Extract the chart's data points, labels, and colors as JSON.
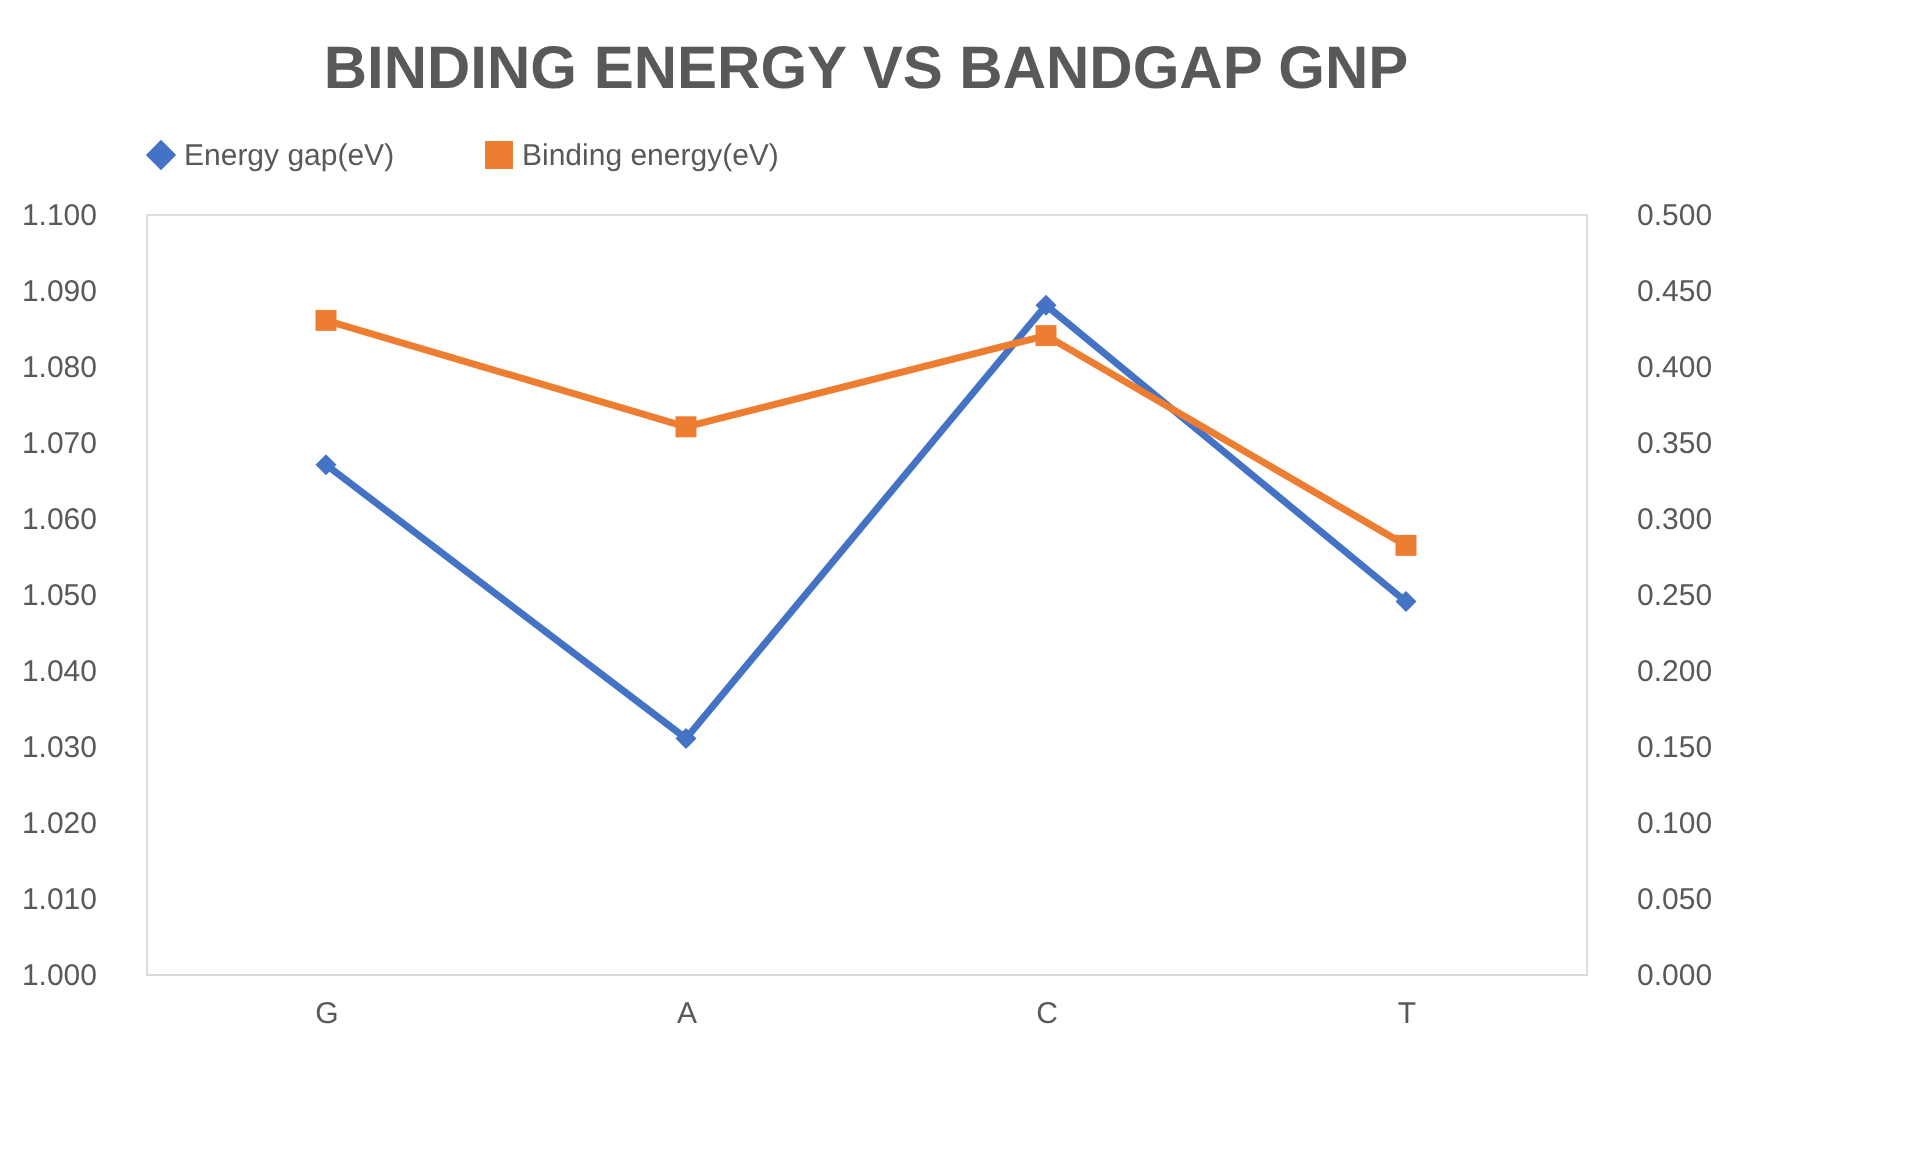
{
  "chart_data": {
    "type": "line",
    "title": "BINDING ENERGY VS BANDGAP GNP",
    "categories": [
      "G",
      "A",
      "C",
      "T"
    ],
    "series": [
      {
        "name": "Energy gap(eV)",
        "color": "#4472c4",
        "marker": "diamond",
        "values": [
          1.067,
          1.031,
          1.088,
          1.049
        ]
      },
      {
        "name": "Binding energy(eV)",
        "color": "#ed7d31",
        "marker": "square",
        "axis": "y2",
        "values": [
          0.43,
          0.36,
          0.42,
          0.282
        ]
      }
    ],
    "ylim": [
      1.0,
      1.1
    ],
    "yticks": [
      {
        "value": 1.0,
        "label": "1.000"
      },
      {
        "value": 1.01,
        "label": "1.010"
      },
      {
        "value": 1.02,
        "label": "1.020"
      },
      {
        "value": 1.03,
        "label": "1.030"
      },
      {
        "value": 1.04,
        "label": "1.040"
      },
      {
        "value": 1.05,
        "label": "1.050"
      },
      {
        "value": 1.06,
        "label": "1.060"
      },
      {
        "value": 1.07,
        "label": "1.070"
      },
      {
        "value": 1.08,
        "label": "1.080"
      },
      {
        "value": 1.09,
        "label": "1.090"
      },
      {
        "value": 1.1,
        "label": "1.100"
      }
    ],
    "y2lim": [
      0.0,
      0.5
    ],
    "y2ticks": [
      {
        "value": 0.0,
        "label": "0.000"
      },
      {
        "value": 0.05,
        "label": "0.050"
      },
      {
        "value": 0.1,
        "label": "0.100"
      },
      {
        "value": 0.15,
        "label": "0.150"
      },
      {
        "value": 0.2,
        "label": "0.200"
      },
      {
        "value": 0.25,
        "label": "0.250"
      },
      {
        "value": 0.3,
        "label": "0.300"
      },
      {
        "value": 0.35,
        "label": "0.350"
      },
      {
        "value": 0.4,
        "label": "0.400"
      },
      {
        "value": 0.45,
        "label": "0.450"
      },
      {
        "value": 0.5,
        "label": "0.500"
      }
    ],
    "grid": false,
    "legend": "top",
    "line_style": "solid"
  }
}
